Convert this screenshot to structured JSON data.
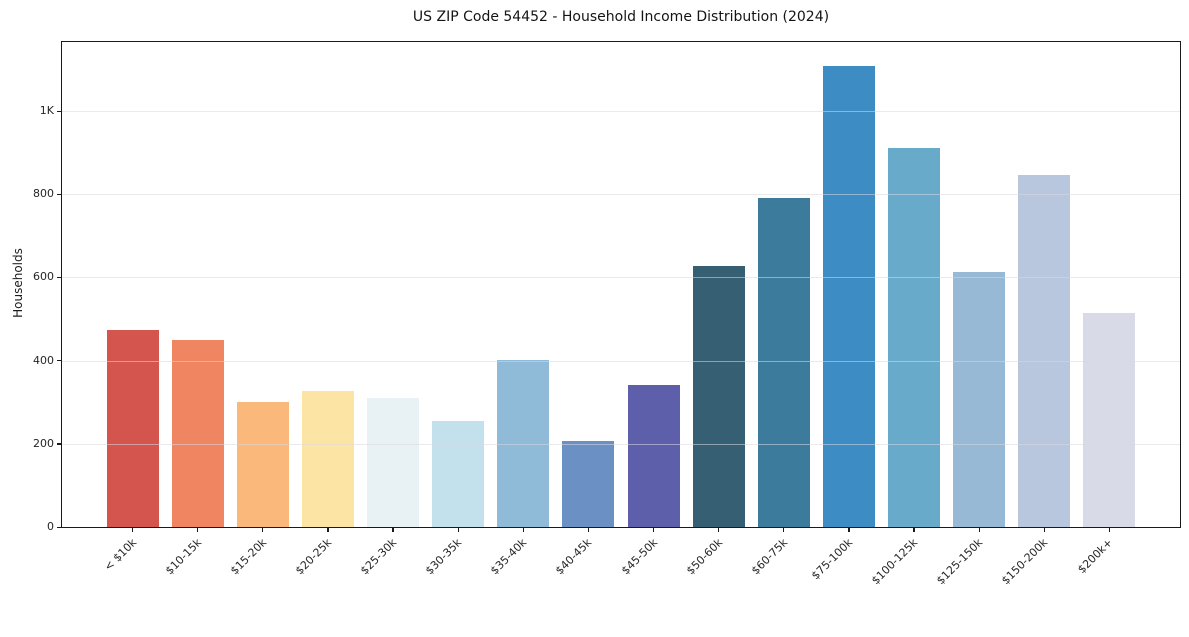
{
  "chart_data": {
    "type": "bar",
    "title": "US ZIP Code 54452 - Household Income Distribution (2024)",
    "xlabel": "",
    "ylabel": "Households",
    "categories": [
      "< $10k",
      "$10-15k",
      "$15-20k",
      "$20-25k",
      "$25-30k",
      "$30-35k",
      "$35-40k",
      "$40-45k",
      "$45-50k",
      "$50-60k",
      "$60-75k",
      "$75-100k",
      "$100-125k",
      "$125-150k",
      "$150-200k",
      "$200k+"
    ],
    "values": [
      474,
      450,
      301,
      326,
      310,
      255,
      402,
      207,
      342,
      628,
      791,
      1109,
      912,
      613,
      847,
      515
    ],
    "bar_colors": [
      "#d4544e",
      "#ef8561",
      "#fab87b",
      "#fce4a4",
      "#e8f1f4",
      "#c3e0ed",
      "#90bbd8",
      "#6b90c4",
      "#5d5fab",
      "#375f73",
      "#3c7b9c",
      "#3d8cc3",
      "#67aac9",
      "#97b9d6",
      "#b8c6de",
      "#d8dae8"
    ],
    "yticks": [
      {
        "value": 0,
        "label": "0"
      },
      {
        "value": 200,
        "label": "200"
      },
      {
        "value": 400,
        "label": "400"
      },
      {
        "value": 600,
        "label": "600"
      },
      {
        "value": 800,
        "label": "800"
      },
      {
        "value": 1000,
        "label": "1K"
      }
    ],
    "ylim": [
      0,
      1166
    ],
    "grid": "horizontal",
    "legend": "none",
    "bar_width_fraction": 0.8
  },
  "colors": {
    "background": "#ffffff",
    "spine": "#1a1a1a",
    "gridline": "#ebebef",
    "tick_label": "#262626",
    "title_text": "#141414"
  }
}
